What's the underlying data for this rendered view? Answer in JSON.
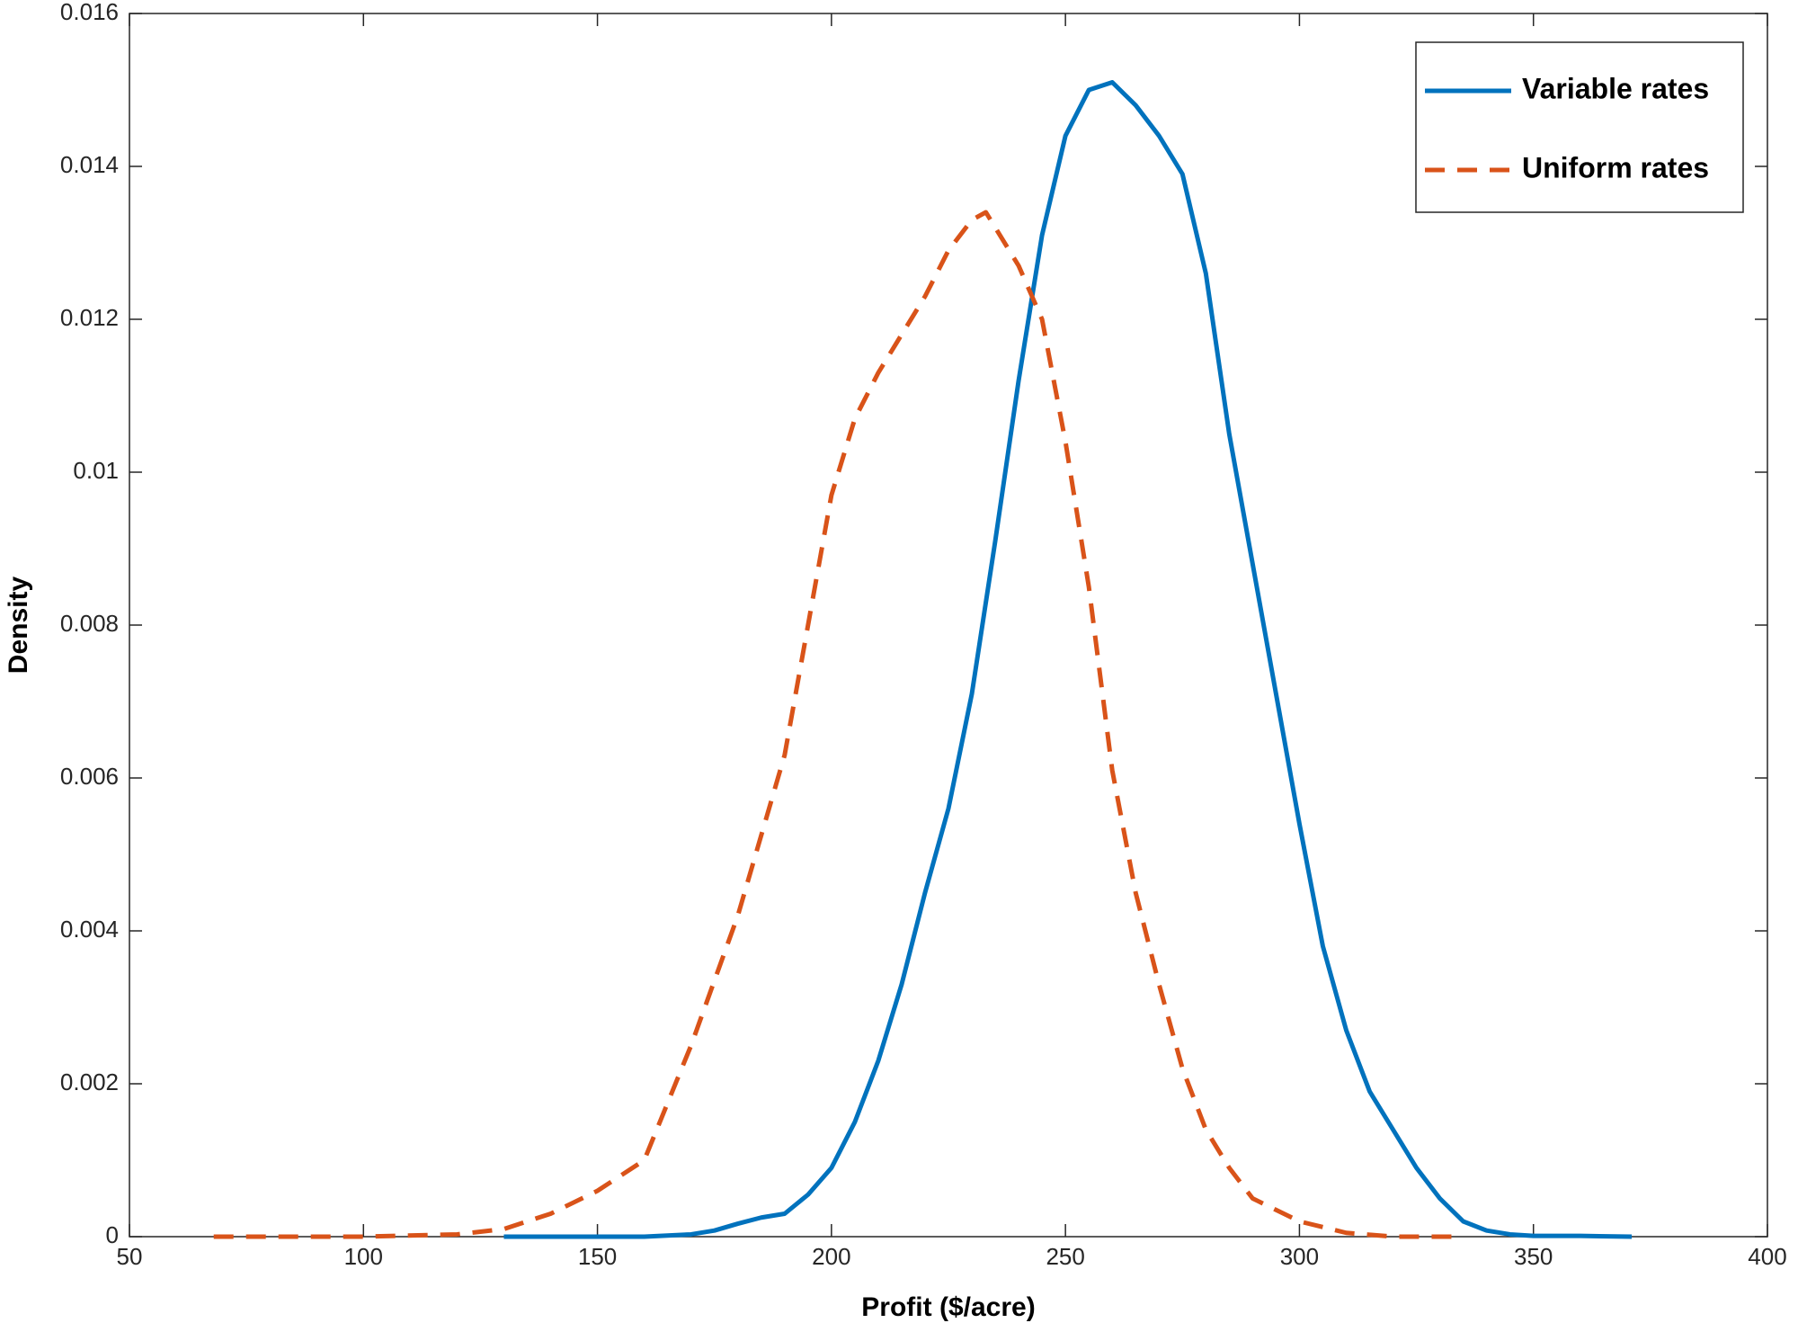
{
  "chart_data": {
    "type": "line",
    "xlabel": "Profit ($/acre)",
    "ylabel": "Density",
    "xlim": [
      50,
      400
    ],
    "xticks": [
      50,
      100,
      150,
      200,
      250,
      300,
      350,
      400
    ],
    "ylim": [
      0,
      0.016
    ],
    "yticks": [
      0,
      0.002,
      0.004,
      0.006,
      0.008,
      0.01,
      0.012,
      0.014,
      0.016
    ],
    "legend_position": "upper right",
    "series": [
      {
        "name": "Variable rates",
        "color": "#0072bd",
        "dash": false,
        "x": [
          130,
          140,
          150,
          160,
          170,
          175,
          180,
          185,
          190,
          195,
          200,
          205,
          210,
          215,
          220,
          225,
          230,
          235,
          240,
          245,
          250,
          255,
          260,
          265,
          270,
          275,
          280,
          285,
          290,
          295,
          300,
          305,
          310,
          315,
          320,
          325,
          330,
          335,
          340,
          345,
          350,
          360,
          371
        ],
        "values": [
          0,
          0,
          0,
          0,
          3e-05,
          8e-05,
          0.00017,
          0.00025,
          0.0003,
          0.00055,
          0.0009,
          0.0015,
          0.0023,
          0.0033,
          0.0045,
          0.0056,
          0.0071,
          0.0091,
          0.0112,
          0.0131,
          0.0144,
          0.015,
          0.0151,
          0.0148,
          0.0144,
          0.0139,
          0.0126,
          0.0105,
          0.0088,
          0.0071,
          0.0054,
          0.0038,
          0.0027,
          0.0019,
          0.0014,
          0.0009,
          0.0005,
          0.0002,
          8e-05,
          3e-05,
          1e-05,
          1e-05,
          0
        ]
      },
      {
        "name": "Uniform rates",
        "color": "#d95319",
        "dash": true,
        "x": [
          68,
          80,
          100,
          120,
          130,
          140,
          150,
          160,
          170,
          180,
          190,
          195,
          200,
          205,
          210,
          215,
          220,
          225,
          230,
          233,
          240,
          245,
          250,
          255,
          260,
          265,
          270,
          275,
          280,
          285,
          290,
          300,
          310,
          320,
          335
        ],
        "values": [
          0,
          0,
          0,
          3e-05,
          0.0001,
          0.0003,
          0.0006,
          0.001,
          0.0025,
          0.0042,
          0.0063,
          0.008,
          0.0097,
          0.0107,
          0.0113,
          0.0118,
          0.0123,
          0.0129,
          0.0133,
          0.0134,
          0.0127,
          0.012,
          0.0104,
          0.0085,
          0.0061,
          0.0045,
          0.0033,
          0.0022,
          0.0014,
          0.0009,
          0.0005,
          0.0002,
          5e-05,
          0,
          0
        ]
      }
    ]
  }
}
